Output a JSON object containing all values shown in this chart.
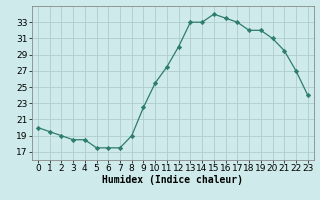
{
  "x": [
    0,
    1,
    2,
    3,
    4,
    5,
    6,
    7,
    8,
    9,
    10,
    11,
    12,
    13,
    14,
    15,
    16,
    17,
    18,
    19,
    20,
    21,
    22,
    23
  ],
  "y": [
    20.0,
    19.5,
    19.0,
    18.5,
    18.5,
    17.5,
    17.5,
    17.5,
    19.0,
    22.5,
    25.5,
    27.5,
    30.0,
    33.0,
    33.0,
    34.0,
    33.5,
    33.0,
    32.0,
    32.0,
    31.0,
    29.5,
    27.0,
    24.0
  ],
  "line_color": "#2d7d6e",
  "marker": "D",
  "marker_size": 2.2,
  "bg_color": "#ceeaea",
  "grid_color": "#b0cccc",
  "xlabel": "Humidex (Indice chaleur)",
  "xlabel_fontsize": 7,
  "tick_fontsize": 6.5,
  "ylim": [
    16,
    35
  ],
  "xlim": [
    -0.5,
    23.5
  ],
  "yticks": [
    17,
    19,
    21,
    23,
    25,
    27,
    29,
    31,
    33
  ],
  "xticks": [
    0,
    1,
    2,
    3,
    4,
    5,
    6,
    7,
    8,
    9,
    10,
    11,
    12,
    13,
    14,
    15,
    16,
    17,
    18,
    19,
    20,
    21,
    22,
    23
  ]
}
